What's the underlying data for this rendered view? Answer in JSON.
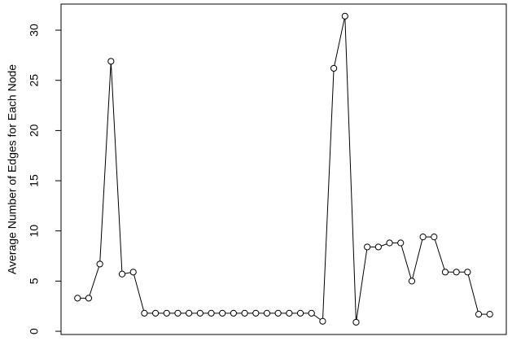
{
  "chart_data": {
    "type": "line",
    "y_label": "Average Number of Edges for Each Node",
    "x": [
      1,
      2,
      3,
      4,
      5,
      6,
      7,
      8,
      9,
      10,
      11,
      12,
      13,
      14,
      15,
      16,
      17,
      18,
      19,
      20,
      21,
      22,
      23,
      24,
      25,
      26,
      27,
      28,
      29,
      30,
      31,
      32,
      33,
      34,
      35,
      36,
      37,
      38
    ],
    "values": [
      3.3,
      3.3,
      6.7,
      26.9,
      5.7,
      5.9,
      1.8,
      1.8,
      1.8,
      1.8,
      1.8,
      1.8,
      1.8,
      1.8,
      1.8,
      1.8,
      1.8,
      1.8,
      1.8,
      1.8,
      1.8,
      1.8,
      1.0,
      26.2,
      31.4,
      0.9,
      8.4,
      8.4,
      8.8,
      8.8,
      5.0,
      9.4,
      9.4,
      5.9,
      5.9,
      5.9,
      1.7,
      1.7
    ],
    "color": "#000000",
    "xlim": [
      -0.48,
      39.48
    ],
    "ylim": [
      -0.32,
      32.6
    ],
    "yticks": [
      0,
      5,
      10,
      15,
      20,
      25,
      30
    ]
  }
}
